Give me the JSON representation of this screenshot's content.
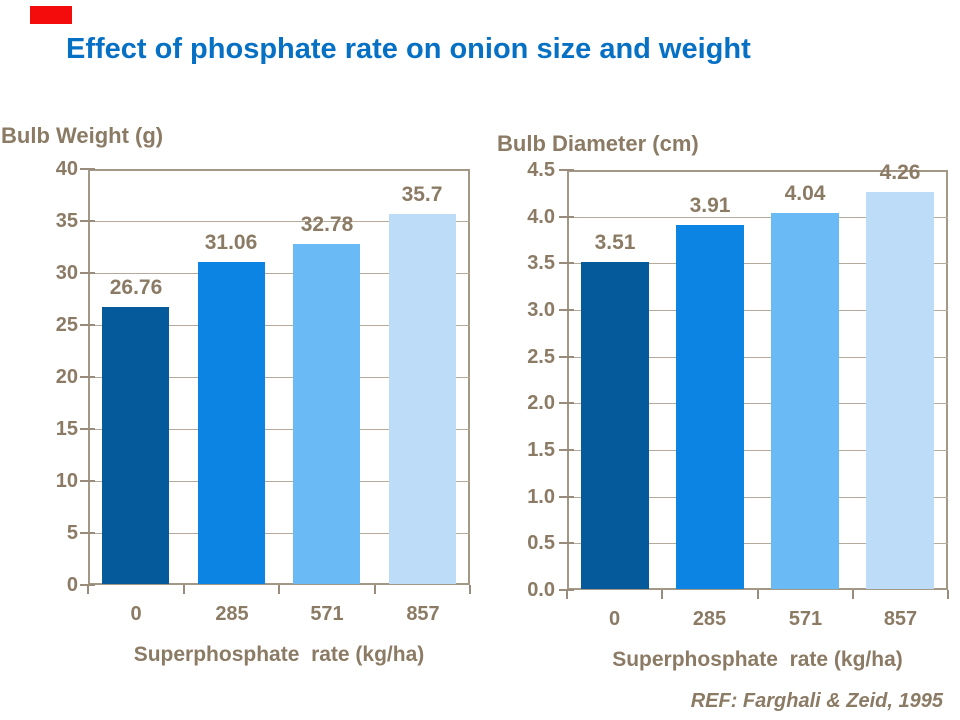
{
  "slide": {
    "title": "Effect of phosphate rate on onion size and weight",
    "title_color": "#0670c4",
    "accent_marker_color": "#f40b0b",
    "text_color": "#8b7b65",
    "footer_ref": "REF: Farghali & Zeid, 1995"
  },
  "chart_data": [
    {
      "type": "bar",
      "title": "Bulb Weight (g)",
      "xlabel": "Superphosphate  rate (kg/ha)",
      "ylabel": "",
      "categories": [
        "0",
        "285",
        "571",
        "857"
      ],
      "values": [
        26.76,
        31.06,
        32.78,
        35.7
      ],
      "value_labels": [
        "26.76",
        "31.06",
        "32.78",
        "35.7"
      ],
      "ylim": [
        0,
        40
      ],
      "ytick_step": 5,
      "ytick_decimals": 0,
      "grid": true,
      "legend": "none",
      "bar_colors": [
        "#045a9a",
        "#0b84e4",
        "#6abaf6",
        "#bddcf8"
      ]
    },
    {
      "type": "bar",
      "title": "Bulb Diameter (cm)",
      "xlabel": "Superphosphate  rate (kg/ha)",
      "ylabel": "",
      "categories": [
        "0",
        "285",
        "571",
        "857"
      ],
      "values": [
        3.51,
        3.91,
        4.04,
        4.26
      ],
      "value_labels": [
        "3.51",
        "3.91",
        "4.04",
        "4.26"
      ],
      "ylim": [
        0,
        4.5
      ],
      "ytick_step": 0.5,
      "ytick_decimals": 1,
      "grid": true,
      "legend": "none",
      "bar_colors": [
        "#045a9a",
        "#0b84e4",
        "#6abaf6",
        "#bddcf8"
      ]
    }
  ]
}
